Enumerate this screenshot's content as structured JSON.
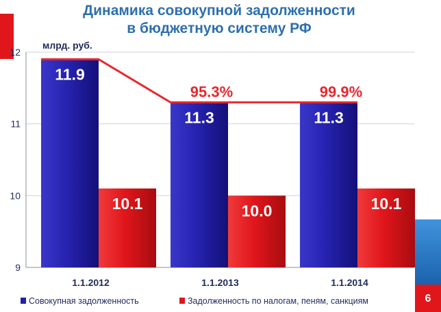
{
  "chart_data": {
    "type": "bar",
    "title": [
      "Динамика совокупной задолженности",
      "в бюджетную систему РФ"
    ],
    "unit_label": "млрд. руб.",
    "categories": [
      "1.1.2012",
      "1.1.2013",
      "1.1.2014"
    ],
    "series": [
      {
        "name": "Совокупная задолженность",
        "values": [
          11.9,
          11.3,
          11.3
        ],
        "color": "#2420a8"
      },
      {
        "name": "Задолженность по налогам, пеням, санкциям",
        "values": [
          10.1,
          10.0,
          10.1
        ],
        "color": "#e0161b"
      }
    ],
    "series_labels": [
      [
        "11.9",
        "11.3",
        "11.3"
      ],
      [
        "10.1",
        "10.0",
        "10.1"
      ]
    ],
    "ylim": [
      9,
      12
    ],
    "yticks": [
      9,
      10,
      11,
      12
    ],
    "trend_line": {
      "series": 0,
      "color": "#e8272d"
    },
    "percent_labels": [
      {
        "category": 1,
        "text": "95.3%"
      },
      {
        "category": 2,
        "text": "99.9%"
      }
    ],
    "legend_position": "bottom",
    "grid": true
  },
  "page_number": "6",
  "colors": {
    "accent_red": "#e0161b",
    "accent_blue": "#1b6fbf",
    "title": "#2e6fae"
  }
}
